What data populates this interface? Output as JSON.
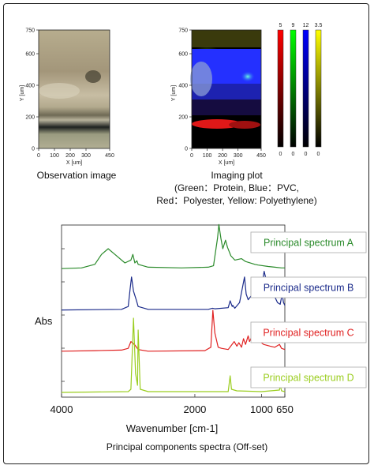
{
  "observation": {
    "caption": "Observation image",
    "x_label": "X [um]",
    "y_label": "Y [um]",
    "x_ticks": [
      "0",
      "100",
      "200",
      "300",
      "450"
    ],
    "y_ticks": [
      "0",
      "200",
      "400",
      "600",
      "750"
    ]
  },
  "imaging": {
    "caption_line1": "Imaging plot",
    "caption_line2": "(Green：Protein, Blue：PVC,",
    "caption_line3": "Red：Polyester, Yellow: Polyethylene)",
    "x_label": "X [um]",
    "y_label": "Y [um]",
    "x_ticks": [
      "0",
      "100",
      "200",
      "300",
      "450"
    ],
    "y_ticks": [
      "0",
      "200",
      "400",
      "600",
      "750"
    ]
  },
  "colorbars": [
    {
      "color": "red",
      "top": "5",
      "bottom": "0"
    },
    {
      "color": "green",
      "top": "9",
      "bottom": "0"
    },
    {
      "color": "blue",
      "top": "12",
      "bottom": "0"
    },
    {
      "color": "yellow",
      "top": "3.5",
      "bottom": "0"
    }
  ],
  "chart_data": {
    "type": "line",
    "title": "Principal components spectra (Off-set)",
    "xlabel": "Wavenumber [cm-1]",
    "ylabel": "Abs",
    "x_reversed": true,
    "xlim": [
      4000,
      650
    ],
    "x_ticks": [
      "4000",
      "2000",
      "1000",
      "650"
    ],
    "series": [
      {
        "name": "Principal spectrum A",
        "color": "#2a8a2a",
        "points": [
          [
            4000,
            0.02
          ],
          [
            3700,
            0.03
          ],
          [
            3500,
            0.08
          ],
          [
            3400,
            0.22
          ],
          [
            3300,
            0.3
          ],
          [
            3200,
            0.22
          ],
          [
            3050,
            0.1
          ],
          [
            2960,
            0.14
          ],
          [
            2930,
            0.22
          ],
          [
            2900,
            0.1
          ],
          [
            2870,
            0.13
          ],
          [
            2850,
            0.08
          ],
          [
            2700,
            0.04
          ],
          [
            2200,
            0.03
          ],
          [
            1800,
            0.04
          ],
          [
            1720,
            0.06
          ],
          [
            1660,
            0.45
          ],
          [
            1640,
            0.64
          ],
          [
            1610,
            0.45
          ],
          [
            1580,
            0.3
          ],
          [
            1540,
            0.42
          ],
          [
            1510,
            0.32
          ],
          [
            1460,
            0.2
          ],
          [
            1400,
            0.14
          ],
          [
            1300,
            0.16
          ],
          [
            1240,
            0.12
          ],
          [
            1100,
            0.08
          ],
          [
            1050,
            0.07
          ],
          [
            900,
            0.05
          ],
          [
            800,
            0.04
          ],
          [
            700,
            0.03
          ],
          [
            650,
            0.03
          ]
        ]
      },
      {
        "name": "Principal spectrum B",
        "color": "#1a2a8a",
        "points": [
          [
            4000,
            0.02
          ],
          [
            3100,
            0.03
          ],
          [
            3000,
            0.08
          ],
          [
            2970,
            0.4
          ],
          [
            2950,
            0.6
          ],
          [
            2920,
            0.35
          ],
          [
            2880,
            0.2
          ],
          [
            2850,
            0.08
          ],
          [
            2700,
            0.03
          ],
          [
            1800,
            0.03
          ],
          [
            1735,
            0.05
          ],
          [
            1700,
            0.04
          ],
          [
            1500,
            0.06
          ],
          [
            1470,
            0.18
          ],
          [
            1440,
            0.08
          ],
          [
            1430,
            0.1
          ],
          [
            1400,
            0.05
          ],
          [
            1330,
            0.15
          ],
          [
            1255,
            0.6
          ],
          [
            1230,
            0.3
          ],
          [
            1200,
            0.2
          ],
          [
            1100,
            0.35
          ],
          [
            1070,
            0.25
          ],
          [
            1040,
            0.3
          ],
          [
            1000,
            0.42
          ],
          [
            960,
            0.7
          ],
          [
            930,
            0.55
          ],
          [
            900,
            0.35
          ],
          [
            870,
            0.4
          ],
          [
            840,
            0.55
          ],
          [
            800,
            0.25
          ],
          [
            760,
            0.15
          ],
          [
            720,
            0.12
          ],
          [
            690,
            0.3
          ],
          [
            670,
            0.15
          ],
          [
            650,
            0.1
          ]
        ]
      },
      {
        "name": "Principal spectrum C",
        "color": "#e02020",
        "points": [
          [
            4000,
            0.03
          ],
          [
            3500,
            0.04
          ],
          [
            3100,
            0.05
          ],
          [
            3000,
            0.08
          ],
          [
            2960,
            0.2
          ],
          [
            2900,
            0.14
          ],
          [
            2850,
            0.06
          ],
          [
            2700,
            0.03
          ],
          [
            1850,
            0.04
          ],
          [
            1760,
            0.1
          ],
          [
            1730,
            0.75
          ],
          [
            1700,
            0.35
          ],
          [
            1650,
            0.1
          ],
          [
            1600,
            0.08
          ],
          [
            1500,
            0.06
          ],
          [
            1410,
            0.2
          ],
          [
            1370,
            0.12
          ],
          [
            1340,
            0.18
          ],
          [
            1300,
            0.1
          ],
          [
            1270,
            0.25
          ],
          [
            1240,
            0.15
          ],
          [
            1200,
            0.3
          ],
          [
            1180,
            0.2
          ],
          [
            1120,
            0.35
          ],
          [
            1100,
            0.25
          ],
          [
            1020,
            0.2
          ],
          [
            970,
            0.15
          ],
          [
            870,
            0.12
          ],
          [
            800,
            0.1
          ],
          [
            730,
            0.15
          ],
          [
            700,
            0.08
          ],
          [
            650,
            0.06
          ]
        ]
      },
      {
        "name": "Principal spectrum D",
        "color": "#9acd1e",
        "points": [
          [
            4000,
            0.01
          ],
          [
            3000,
            0.02
          ],
          [
            2960,
            0.05
          ],
          [
            2920,
            0.95
          ],
          [
            2890,
            0.25
          ],
          [
            2860,
            0.1
          ],
          [
            2850,
            0.8
          ],
          [
            2820,
            0.05
          ],
          [
            2700,
            0.02
          ],
          [
            1800,
            0.02
          ],
          [
            1500,
            0.02
          ],
          [
            1470,
            0.22
          ],
          [
            1450,
            0.05
          ],
          [
            1370,
            0.03
          ],
          [
            1000,
            0.02
          ],
          [
            730,
            0.04
          ],
          [
            720,
            0.1
          ],
          [
            700,
            0.03
          ],
          [
            650,
            0.02
          ]
        ]
      }
    ]
  }
}
